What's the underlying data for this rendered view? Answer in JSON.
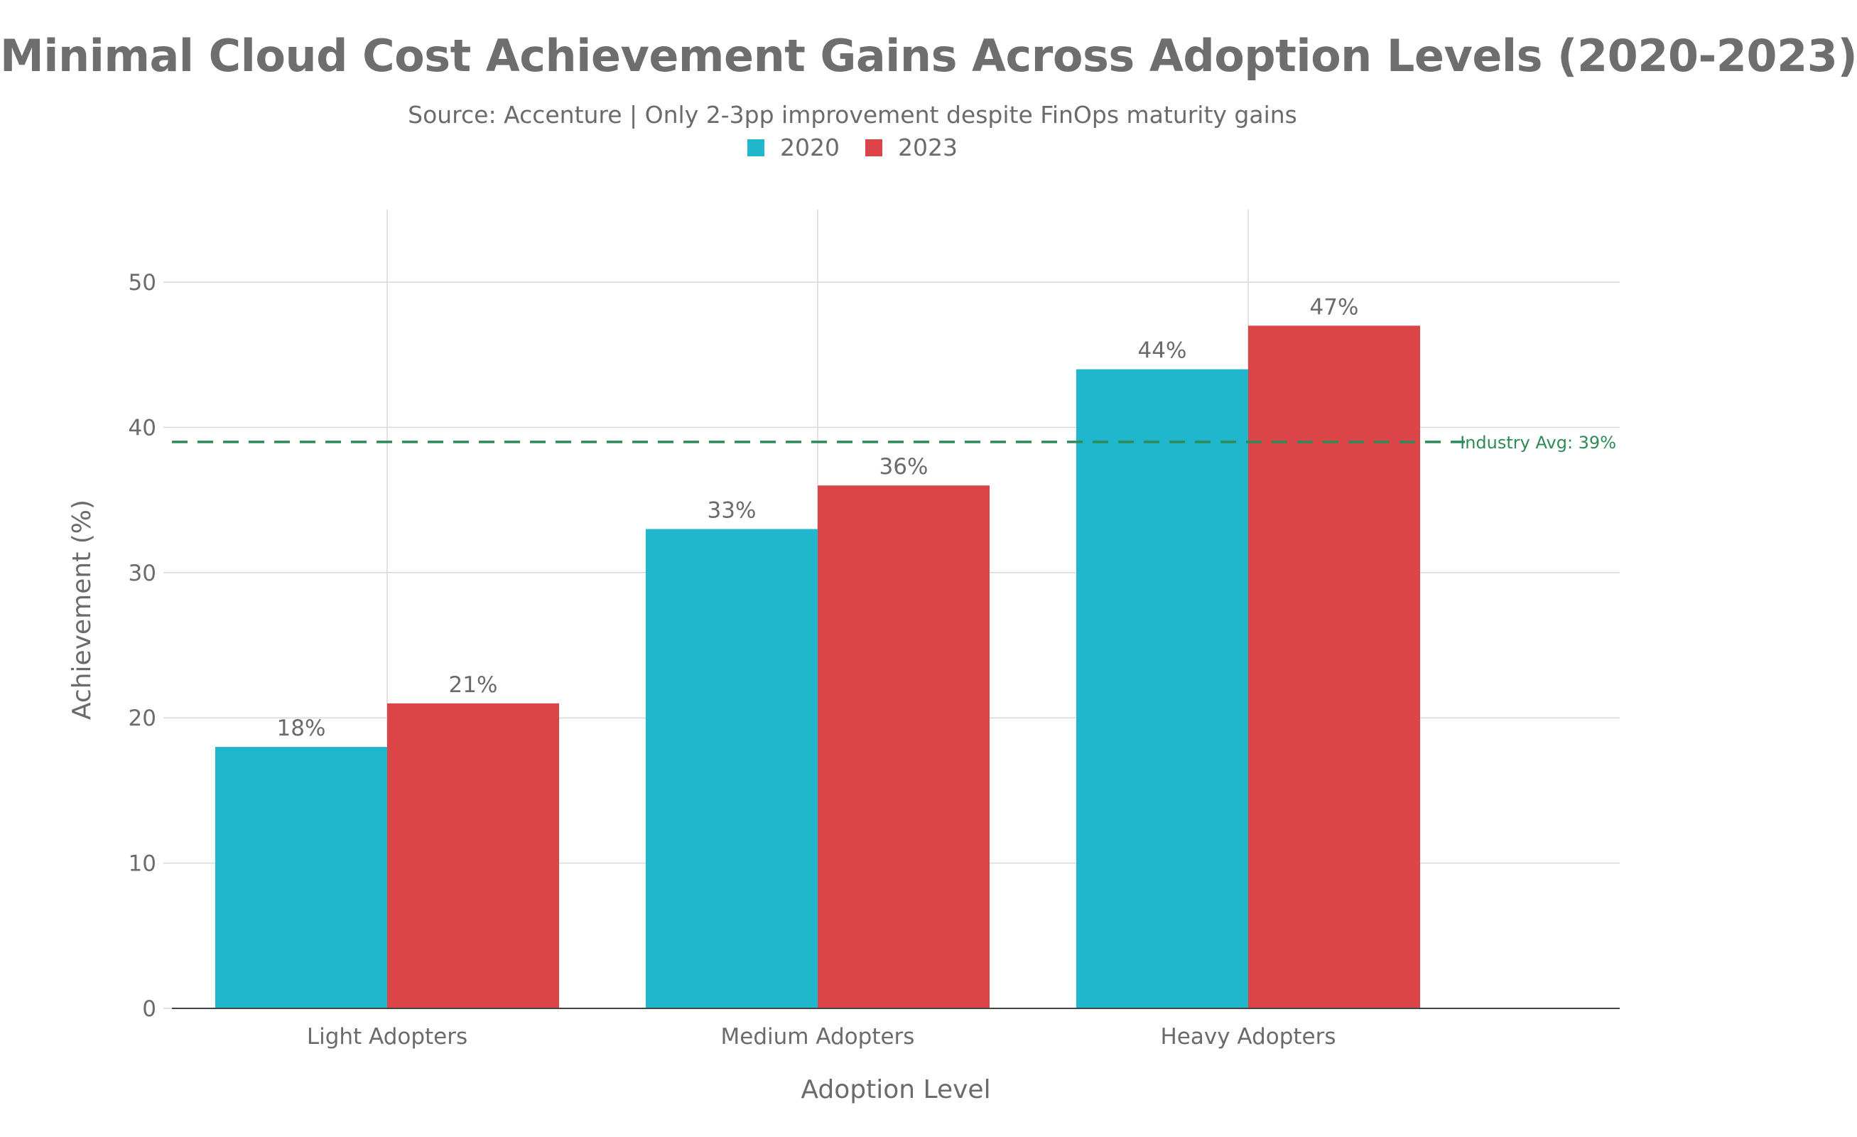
{
  "title": "Minimal Cloud Cost Achievement Gains Across Adoption Levels (2020-2023)",
  "subtitle": "Source: Accenture | Only 2-3pp improvement despite FinOps maturity gains",
  "colors": {
    "series_2020": "#20B7CD",
    "series_2023": "#DB4547",
    "reference_line": "#2E8B57",
    "grid": "#d9d9d9",
    "text": "#6b6b6b"
  },
  "chart_data": {
    "type": "bar",
    "categories": [
      "Light Adopters",
      "Medium Adopters",
      "Heavy Adopters"
    ],
    "series": [
      {
        "name": "2020",
        "values": [
          18,
          33,
          44
        ],
        "labels": [
          "18%",
          "33%",
          "44%"
        ]
      },
      {
        "name": "2023",
        "values": [
          21,
          36,
          47
        ],
        "labels": [
          "21%",
          "36%",
          "47%"
        ]
      }
    ],
    "xlabel": "Adoption Level",
    "ylabel": "Achievement (%)",
    "ylim": [
      0,
      55
    ],
    "yticks": [
      0,
      10,
      20,
      30,
      40,
      50
    ],
    "grid": true,
    "legend_placement": "top-center",
    "reference_line": {
      "value": 39,
      "label": "Industry Avg: 39%",
      "style": "dashed"
    }
  }
}
